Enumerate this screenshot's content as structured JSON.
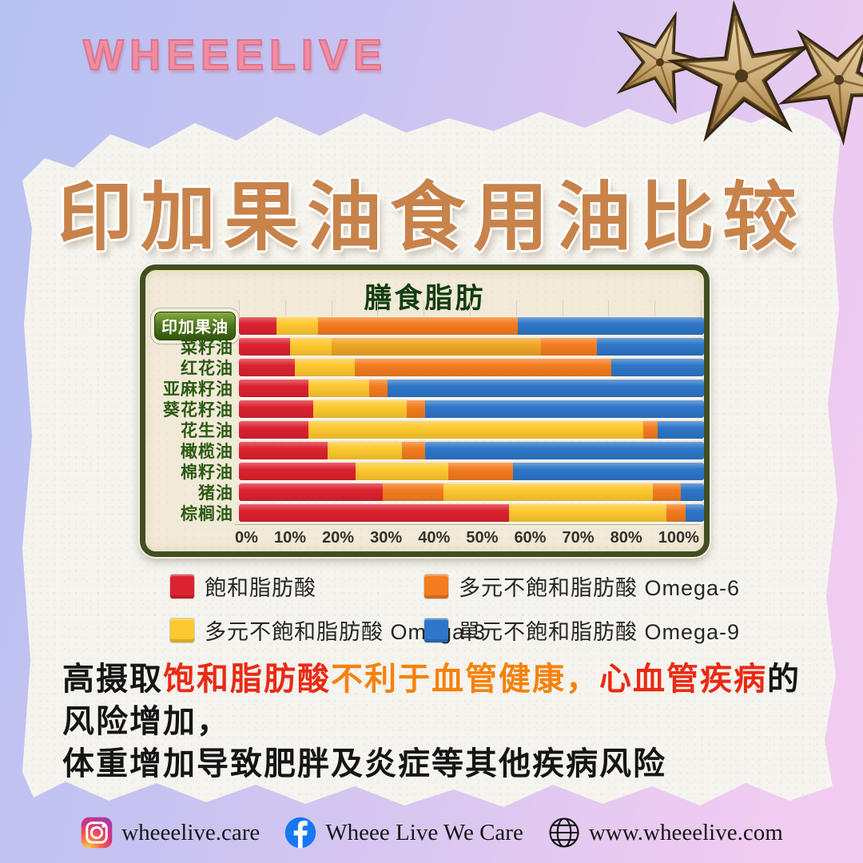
{
  "brand": {
    "logo": "WHEEELIVE"
  },
  "title": "印加果油食用油比较",
  "chart": {
    "title": "膳食脂肪",
    "colors": {
      "red": "#dc2230",
      "orange": "#f47c1f",
      "yellow": "#fec82f",
      "gold": "#f0a524",
      "blue": "#2e76c8"
    },
    "axis_ticks": [
      "0%",
      "10%",
      "20%",
      "30%",
      "40%",
      "50%",
      "60%",
      "70%",
      "80%",
      "100%"
    ],
    "rows": [
      {
        "label": "印加果油",
        "highlight": true,
        "segments": [
          {
            "c": "red",
            "v": 8
          },
          {
            "c": "yellow",
            "v": 9
          },
          {
            "c": "orange",
            "v": 43
          },
          {
            "c": "blue",
            "v": 40
          }
        ]
      },
      {
        "label": "菜籽油",
        "highlight": false,
        "segments": [
          {
            "c": "red",
            "v": 11
          },
          {
            "c": "yellow",
            "v": 9
          },
          {
            "c": "gold",
            "v": 45
          },
          {
            "c": "orange",
            "v": 12
          },
          {
            "c": "blue",
            "v": 23
          }
        ]
      },
      {
        "label": "红花油",
        "highlight": false,
        "segments": [
          {
            "c": "red",
            "v": 12
          },
          {
            "c": "yellow",
            "v": 13
          },
          {
            "c": "orange",
            "v": 55
          },
          {
            "c": "blue",
            "v": 20
          }
        ]
      },
      {
        "label": "亚麻籽油",
        "highlight": false,
        "segments": [
          {
            "c": "red",
            "v": 15
          },
          {
            "c": "yellow",
            "v": 13
          },
          {
            "c": "orange",
            "v": 4
          },
          {
            "c": "blue",
            "v": 68
          }
        ]
      },
      {
        "label": "葵花籽油",
        "highlight": false,
        "segments": [
          {
            "c": "red",
            "v": 16
          },
          {
            "c": "yellow",
            "v": 20
          },
          {
            "c": "orange",
            "v": 4
          },
          {
            "c": "blue",
            "v": 60
          }
        ]
      },
      {
        "label": "花生油",
        "highlight": false,
        "segments": [
          {
            "c": "red",
            "v": 15
          },
          {
            "c": "yellow",
            "v": 72
          },
          {
            "c": "orange",
            "v": 3
          },
          {
            "c": "blue",
            "v": 10
          }
        ]
      },
      {
        "label": "橄榄油",
        "highlight": false,
        "segments": [
          {
            "c": "red",
            "v": 19
          },
          {
            "c": "yellow",
            "v": 16
          },
          {
            "c": "orange",
            "v": 5
          },
          {
            "c": "blue",
            "v": 60
          }
        ]
      },
      {
        "label": "棉籽油",
        "highlight": false,
        "segments": [
          {
            "c": "red",
            "v": 25
          },
          {
            "c": "yellow",
            "v": 20
          },
          {
            "c": "orange",
            "v": 14
          },
          {
            "c": "blue",
            "v": 41
          }
        ]
      },
      {
        "label": "猪油",
        "highlight": false,
        "segments": [
          {
            "c": "red",
            "v": 31
          },
          {
            "c": "orange",
            "v": 13
          },
          {
            "c": "yellow",
            "v": 45
          },
          {
            "c": "orange",
            "v": 6
          },
          {
            "c": "blue",
            "v": 5
          }
        ]
      },
      {
        "label": "棕榈油",
        "highlight": false,
        "segments": [
          {
            "c": "red",
            "v": 58
          },
          {
            "c": "yellow",
            "v": 34
          },
          {
            "c": "orange",
            "v": 4
          },
          {
            "c": "blue",
            "v": 4
          }
        ]
      }
    ],
    "legend": [
      {
        "color": "red",
        "label": "飽和脂肪酸"
      },
      {
        "color": "orange",
        "label": "多元不飽和脂肪酸 Omega-6"
      },
      {
        "color": "yellow",
        "label": "多元不飽和脂肪酸 Omega-3"
      },
      {
        "color": "blue",
        "label": "單元不飽和脂肪酸 Omega-9"
      }
    ]
  },
  "chart_data": {
    "type": "stacked_bar_horizontal",
    "title": "膳食脂肪",
    "unit": "%",
    "xlim": [
      0,
      100
    ],
    "x_ticks": [
      "0%",
      "10%",
      "20%",
      "30%",
      "40%",
      "50%",
      "60%",
      "70%",
      "80%",
      "100%"
    ],
    "categories": [
      "印加果油",
      "菜籽油",
      "红花油",
      "亚麻籽油",
      "葵花籽油",
      "花生油",
      "橄榄油",
      "棉籽油",
      "猪油",
      "棕榈油"
    ],
    "series": [
      {
        "name": "飽和脂肪酸",
        "color": "#dc2230",
        "values": [
          8,
          11,
          12,
          15,
          16,
          15,
          19,
          25,
          31,
          58
        ]
      },
      {
        "name": "多元不飽和脂肪酸 Omega-6",
        "color": "#f47c1f",
        "values": [
          43,
          12,
          55,
          4,
          4,
          3,
          5,
          14,
          19,
          4
        ]
      },
      {
        "name": "多元不飽和脂肪酸 Omega-3",
        "color": "#fec82f",
        "values": [
          9,
          54,
          13,
          13,
          20,
          72,
          16,
          20,
          45,
          34
        ]
      },
      {
        "name": "單元不飽和脂肪酸 Omega-9",
        "color": "#2e76c8",
        "values": [
          40,
          23,
          20,
          68,
          60,
          10,
          60,
          41,
          5,
          4
        ]
      }
    ],
    "legend_position": "bottom",
    "grid": false
  },
  "note": {
    "parts": [
      {
        "text": "高摄取",
        "color": "#151515"
      },
      {
        "text": "饱和脂肪酸",
        "color": "#ea2a14"
      },
      {
        "text": "不利于血管健康，",
        "color": "#f5820d"
      },
      {
        "text": "心血管疾病",
        "color": "#ea2a14"
      },
      {
        "text": "的风险增加，",
        "color": "#151515"
      },
      {
        "text": "体重增加导致肥胖及炎症等其他疾病风险",
        "color": "#151515",
        "br": true
      }
    ]
  },
  "footer": {
    "instagram": "wheeelive.care",
    "facebook": "Wheee Live We Care",
    "website": "www.wheeelive.com"
  }
}
